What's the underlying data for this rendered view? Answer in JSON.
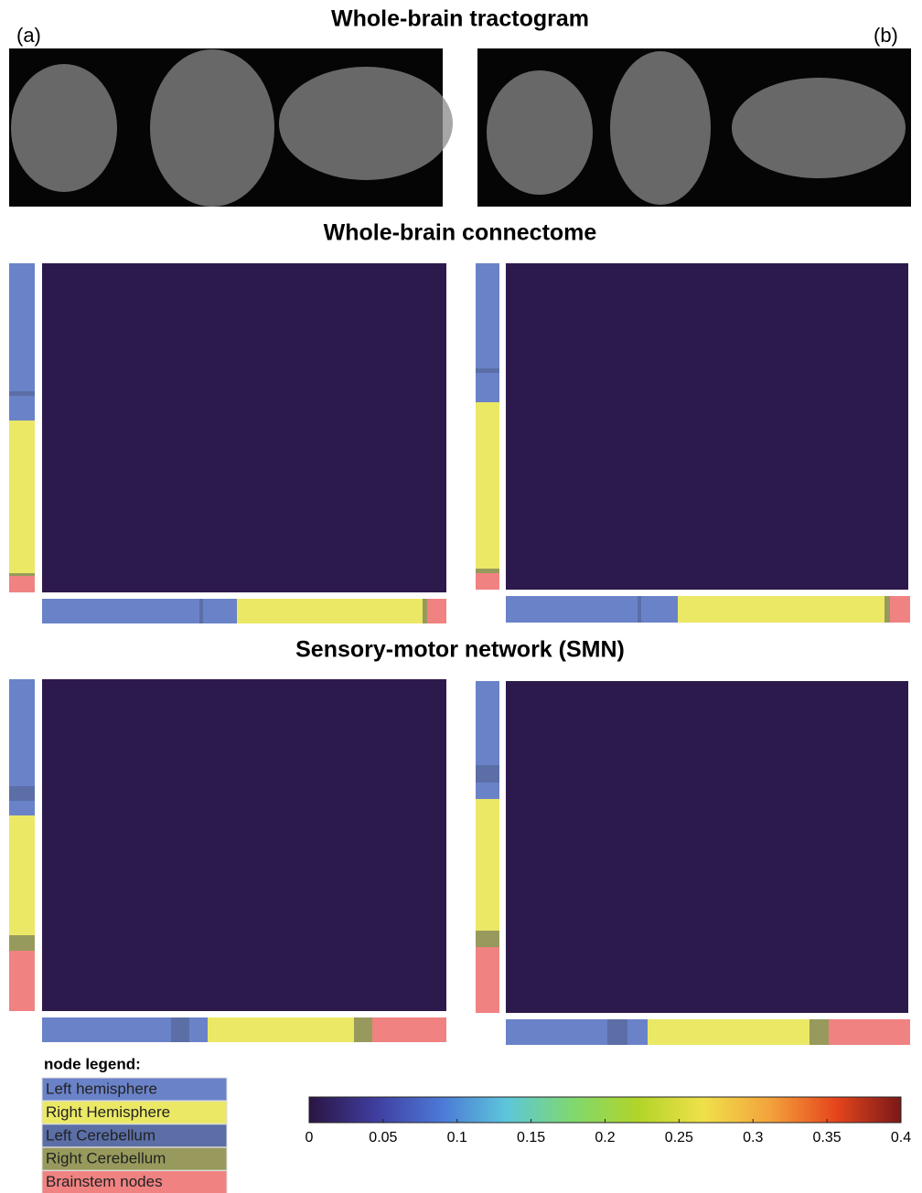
{
  "titles": {
    "tractogram": "Whole-brain tractogram",
    "connectome": "Whole-brain connectome",
    "smn": "Sensory-motor network (SMN)"
  },
  "panels": {
    "a": "(a)",
    "b": "(b)"
  },
  "node_legend": {
    "title": "node legend:",
    "items": [
      {
        "label": "Left hemisphere",
        "color": "#6a82c8"
      },
      {
        "label": "Right Hemisphere",
        "color": "#ebe866"
      },
      {
        "label": "Left Cerebellum",
        "color": "#5b6ea6"
      },
      {
        "label": "Right Cerebellum",
        "color": "#979a5c"
      },
      {
        "label": "Brainstem nodes",
        "color": "#f08282"
      }
    ]
  },
  "colorbar": {
    "lim": [
      0,
      0.4
    ],
    "ticks": [
      0,
      0.05,
      0.1,
      0.15,
      0.2,
      0.25,
      0.3,
      0.35,
      0.4
    ],
    "colors": [
      "#2a1542",
      "#3f3d9e",
      "#4c78d6",
      "#5cc6da",
      "#7fd870",
      "#b2d428",
      "#f0e04a",
      "#f3a33c",
      "#e6461c",
      "#7a1818"
    ]
  }
}
